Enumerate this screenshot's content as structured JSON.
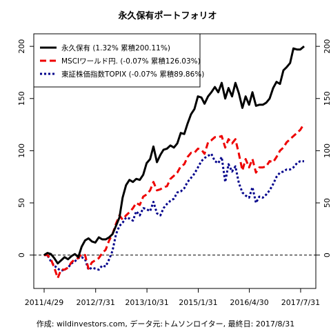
{
  "chart_data": {
    "type": "line",
    "title": "永久保有ポートフォリオ",
    "xlabel": "",
    "ylabel": "",
    "caption": "作成: wildinvestors.com, データ元:トムソンロイター, 最終日: 2017/8/31",
    "x_ticks": [
      "2011/4/29",
      "2012/7/31",
      "2013/10/31",
      "2015/1/31",
      "2016/4/30",
      "2017/7/31"
    ],
    "y_ticks": [
      0,
      50,
      100,
      150,
      200
    ],
    "ylim": [
      -32,
      212
    ],
    "x_range": [
      "2011/4/29",
      "2017/8/31"
    ],
    "reference_line": {
      "y": 0,
      "style": "dashed"
    },
    "legend": {
      "position": "top-left",
      "entries": [
        "永久保有 (1.32% 累積200.11%)",
        "MSCIワールド円. (-0.07% 累積126.03%)",
        "東証株価指数TOPIX (-0.07% 累積89.86%)"
      ]
    },
    "colors": {
      "permanent": "#000000",
      "msci": "#ee0000",
      "topix": "#00008b"
    },
    "x": [
      "2011-04",
      "2011-05",
      "2011-06",
      "2011-07",
      "2011-08",
      "2011-09",
      "2011-10",
      "2011-11",
      "2011-12",
      "2012-01",
      "2012-02",
      "2012-03",
      "2012-04",
      "2012-05",
      "2012-06",
      "2012-07",
      "2012-08",
      "2012-09",
      "2012-10",
      "2012-11",
      "2012-12",
      "2013-01",
      "2013-02",
      "2013-03",
      "2013-04",
      "2013-05",
      "2013-06",
      "2013-07",
      "2013-08",
      "2013-09",
      "2013-10",
      "2013-11",
      "2013-12",
      "2014-01",
      "2014-02",
      "2014-03",
      "2014-04",
      "2014-05",
      "2014-06",
      "2014-07",
      "2014-08",
      "2014-09",
      "2014-10",
      "2014-11",
      "2014-12",
      "2015-01",
      "2015-02",
      "2015-03",
      "2015-04",
      "2015-05",
      "2015-06",
      "2015-07",
      "2015-08",
      "2015-09",
      "2015-10",
      "2015-11",
      "2015-12",
      "2016-01",
      "2016-02",
      "2016-03",
      "2016-04",
      "2016-05",
      "2016-06",
      "2016-07",
      "2016-08",
      "2016-09",
      "2016-10",
      "2016-11",
      "2016-12",
      "2017-01",
      "2017-02",
      "2017-03",
      "2017-04",
      "2017-05",
      "2017-06",
      "2017-07",
      "2017-08"
    ],
    "series": [
      {
        "name": "永久保有 (1.32% 累積200.11%)",
        "style": "solid",
        "values": [
          0,
          2,
          1,
          -3,
          -8,
          -5,
          -2,
          -4,
          -1,
          1,
          -2,
          8,
          14,
          16,
          13,
          12,
          17,
          15,
          15,
          17,
          20,
          28,
          36,
          55,
          67,
          72,
          70,
          73,
          72,
          77,
          88,
          92,
          104,
          89,
          96,
          101,
          102,
          105,
          103,
          107,
          117,
          116,
          126,
          135,
          140,
          152,
          151,
          145,
          152,
          156,
          161,
          156,
          165,
          150,
          160,
          152,
          165,
          155,
          141,
          152,
          144,
          156,
          143,
          144,
          144,
          146,
          150,
          160,
          166,
          164,
          177,
          180,
          184,
          198,
          197,
          197,
          200
        ]
      },
      {
        "name": "MSCIワールド円. (-0.07% 累積126.03%)",
        "style": "dashed",
        "values": [
          0,
          0,
          -4,
          -12,
          -22,
          -14,
          -14,
          -12,
          -7,
          -4,
          -3,
          1,
          0,
          -13,
          -7,
          -5,
          -3,
          2,
          5,
          14,
          20,
          30,
          38,
          34,
          38,
          41,
          45,
          50,
          48,
          56,
          58,
          62,
          70,
          62,
          63,
          65,
          66,
          73,
          76,
          79,
          85,
          87,
          94,
          98,
          98,
          102,
          101,
          97,
          108,
          110,
          113,
          113,
          114,
          103,
          111,
          107,
          111,
          97,
          81,
          92,
          84,
          92,
          79,
          84,
          84,
          85,
          90,
          89,
          94,
          100,
          103,
          108,
          111,
          114,
          117,
          120,
          126
        ]
      },
      {
        "name": "東証株価指数TOPIX (-0.07% 累積89.86%)",
        "style": "dotted",
        "values": [
          0,
          0,
          -6,
          -10,
          -13,
          -15,
          -14,
          -12,
          -8,
          -6,
          -3,
          -2,
          -4,
          -14,
          -12,
          -13,
          -14,
          -10,
          -11,
          -4,
          4,
          20,
          28,
          31,
          36,
          35,
          33,
          42,
          38,
          45,
          44,
          42,
          51,
          40,
          38,
          45,
          49,
          52,
          54,
          60,
          61,
          64,
          70,
          74,
          78,
          84,
          90,
          93,
          95,
          97,
          90,
          88,
          94,
          70,
          87,
          80,
          85,
          69,
          60,
          57,
          55,
          65,
          50,
          56,
          55,
          58,
          62,
          68,
          75,
          79,
          80,
          82,
          82,
          84,
          88,
          90,
          89.86
        ]
      }
    ]
  }
}
